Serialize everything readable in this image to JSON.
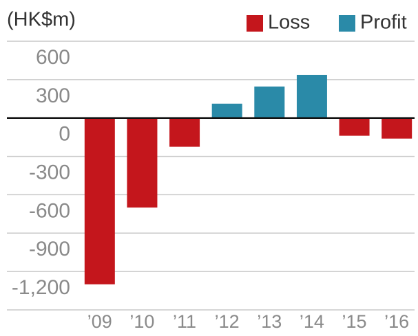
{
  "chart_data": {
    "type": "bar",
    "y_label": "(HK$m)",
    "categories": [
      "’09",
      "’10",
      "’11",
      "’12",
      "’13",
      "’14",
      "’15",
      "’16"
    ],
    "series": [
      {
        "name": "Loss",
        "color": "#c4161c",
        "values": [
          -1300,
          -700,
          -225,
          null,
          null,
          null,
          -139,
          -161
        ]
      },
      {
        "name": "Profit",
        "color": "#2a8aa8",
        "values": [
          null,
          null,
          null,
          112,
          246,
          337,
          null,
          null
        ]
      }
    ],
    "ylim": [
      -1500,
      600
    ],
    "yticks": [
      600,
      300,
      0,
      -300,
      -600,
      -900,
      {
        "value": -1200,
        "label": "-1,200"
      }
    ],
    "grid": true,
    "legend": "top-right"
  }
}
